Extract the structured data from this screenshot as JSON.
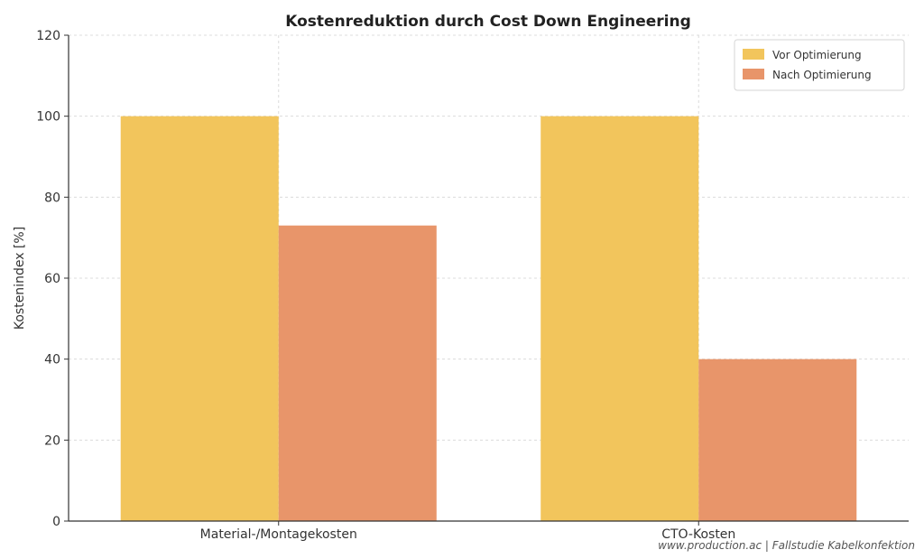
{
  "chart_data": {
    "type": "bar",
    "title": "Kostenreduktion durch Cost Down Engineering",
    "xlabel": "",
    "ylabel": "Kostenindex [%]",
    "ylim": [
      0,
      120
    ],
    "yticks": [
      0,
      20,
      40,
      60,
      80,
      100,
      120
    ],
    "grid": true,
    "legend_position": "top-right",
    "categories": [
      "Material-/Montagekosten",
      "CTO-Kosten"
    ],
    "series": [
      {
        "name": "Vor Optimierung",
        "values": [
          100,
          100
        ],
        "color": "#F2C55C"
      },
      {
        "name": "Nach Optimierung",
        "values": [
          73,
          40
        ],
        "color": "#E8956A"
      }
    ]
  },
  "footer": {
    "source_text": "www.production.ac | Fallstudie Kabelkonfektion"
  }
}
